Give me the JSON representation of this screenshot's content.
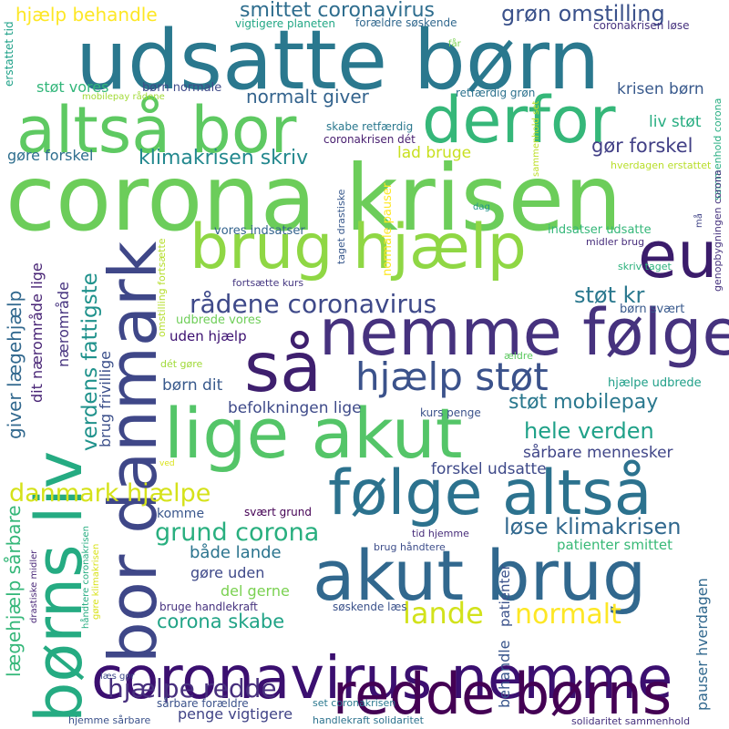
{
  "words": [
    {
      "text": "udsatte børn",
      "color": "#2a788e"
    },
    {
      "text": "corona krisen",
      "color": "#6ccd5a"
    },
    {
      "text": "altså bor",
      "color": "#5ec962"
    },
    {
      "text": "derfor",
      "color": "#35b779"
    },
    {
      "text": "brug hjælp",
      "color": "#8fd744"
    },
    {
      "text": "eu",
      "color": "#3b1c6b"
    },
    {
      "text": "nemme følge",
      "color": "#46327e"
    },
    {
      "text": "så",
      "color": "#3e1f6e"
    },
    {
      "text": "lige akut",
      "color": "#54c568"
    },
    {
      "text": "følge altså",
      "color": "#2c728e"
    },
    {
      "text": "akut brug",
      "color": "#31688e"
    },
    {
      "text": "coronavirus nemme",
      "color": "#3b0f70"
    },
    {
      "text": "redde børns",
      "color": "#440154"
    },
    {
      "text": "bor danmark",
      "color": "#3f4788"
    },
    {
      "text": "børns liv",
      "color": "#25ab82"
    },
    {
      "text": "smittet coronavirus",
      "color": "#2e6d8e"
    },
    {
      "text": "grøn omstilling",
      "color": "#3b528b"
    },
    {
      "text": "hjælp behandle",
      "color": "#fde725"
    },
    {
      "text": "vigtigere planeten",
      "color": "#22a785"
    },
    {
      "text": "forældre søskende",
      "color": "#31688e"
    },
    {
      "text": "får",
      "color": "#7ad151"
    },
    {
      "text": "coronakrisen løse",
      "color": "#46327e"
    },
    {
      "text": "erstattet tid",
      "color": "#1fa188"
    },
    {
      "text": "støt vores",
      "color": "#32b67a"
    },
    {
      "text": "børn normale",
      "color": "#3e4a89"
    },
    {
      "text": "mobilepay rådene",
      "color": "#a2da37"
    },
    {
      "text": "normalt giver",
      "color": "#33638d"
    },
    {
      "text": "retfærdig grøn",
      "color": "#2c728e"
    },
    {
      "text": "krisen børn",
      "color": "#38598c"
    },
    {
      "text": "liv støt",
      "color": "#27ad81"
    },
    {
      "text": "skabe retfærdig",
      "color": "#2a788e"
    },
    {
      "text": "coronakrisen dét",
      "color": "#481f70"
    },
    {
      "text": "sammenhold set",
      "color": "#bddf26"
    },
    {
      "text": "gør forskel",
      "color": "#424086"
    },
    {
      "text": "klimakrisen skriv",
      "color": "#23888e"
    },
    {
      "text": "lad bruge",
      "color": "#c8e020"
    },
    {
      "text": "gøre forskel",
      "color": "#2e6e8e"
    },
    {
      "text": "normale pauser",
      "color": "#fde725"
    },
    {
      "text": "taget drastiske",
      "color": "#38588c"
    },
    {
      "text": "hverdagen erstattet",
      "color": "#b8de29"
    },
    {
      "text": "sammenhold corona",
      "color": "#26ad81"
    },
    {
      "text": "genopbygningen corona",
      "color": "#46327e"
    },
    {
      "text": "dag",
      "color": "#1f958b"
    },
    {
      "text": "må",
      "color": "#414487"
    },
    {
      "text": "vores indsatser",
      "color": "#33638d"
    },
    {
      "text": "indsatser udsatte",
      "color": "#35b779"
    },
    {
      "text": "midler brug",
      "color": "#472d7b"
    },
    {
      "text": "omstilling fortsætte",
      "color": "#b5de2b"
    },
    {
      "text": "fortsætte kurs",
      "color": "#453781"
    },
    {
      "text": "skriv taget",
      "color": "#2db27d"
    },
    {
      "text": "rådene coronavirus",
      "color": "#3e4989"
    },
    {
      "text": "støt kr",
      "color": "#2a788e"
    },
    {
      "text": "børn svært",
      "color": "#38598c"
    },
    {
      "text": "giver lægehjælp",
      "color": "#31688e"
    },
    {
      "text": "dit nærområde lige",
      "color": "#482475"
    },
    {
      "text": "nærområde",
      "color": "#46337f"
    },
    {
      "text": "verdens fattigste",
      "color": "#20928c"
    },
    {
      "text": "brug frivillige",
      "color": "#3c508b"
    },
    {
      "text": "udbrede vores",
      "color": "#6ece58"
    },
    {
      "text": "uden hjælp",
      "color": "#3b0f70"
    },
    {
      "text": "hjælp støt",
      "color": "#3b528b"
    },
    {
      "text": "dét gøre",
      "color": "#a0da39"
    },
    {
      "text": "ældre",
      "color": "#5ec962"
    },
    {
      "text": "hjælpe udbrede",
      "color": "#1f9f88"
    },
    {
      "text": "børn dit",
      "color": "#38598c"
    },
    {
      "text": "befolkningen lige",
      "color": "#3e4a89"
    },
    {
      "text": "støt mobilepay",
      "color": "#2a788e"
    },
    {
      "text": "kurs penge",
      "color": "#3b528b"
    },
    {
      "text": "hele verden",
      "color": "#1fa188"
    },
    {
      "text": "sårbare mennesker",
      "color": "#404688"
    },
    {
      "text": "ved",
      "color": "#dae319"
    },
    {
      "text": "danmark hjælpe",
      "color": "#d5e21a"
    },
    {
      "text": "forskel udsatte",
      "color": "#3e4989"
    },
    {
      "text": "lægehjælp sårbare",
      "color": "#35b779"
    },
    {
      "text": "komme",
      "color": "#39568c"
    },
    {
      "text": "svært grund",
      "color": "#440154"
    },
    {
      "text": "grund corona",
      "color": "#29af7f"
    },
    {
      "text": "løse klimakrisen",
      "color": "#31688e"
    },
    {
      "text": "tid hjemme",
      "color": "#472c7a"
    },
    {
      "text": "patienter smittet",
      "color": "#38b977"
    },
    {
      "text": "både lande",
      "color": "#2b748e"
    },
    {
      "text": "brug håndtere",
      "color": "#3d4d8a"
    },
    {
      "text": "drastiske midler",
      "color": "#482677"
    },
    {
      "text": "gøre uden",
      "color": "#3e4989"
    },
    {
      "text": "del gerne",
      "color": "#7ad151"
    },
    {
      "text": "lande",
      "color": "#d2e21b"
    },
    {
      "text": "normalt",
      "color": "#fde725"
    },
    {
      "text": "håndtere coronakrisen",
      "color": "#27ad81"
    },
    {
      "text": "gøre klimakrisen",
      "color": "#d8e219"
    },
    {
      "text": "corona skabe",
      "color": "#20a386"
    },
    {
      "text": "bruge handlekraft",
      "color": "#46327e"
    },
    {
      "text": "søskende læs",
      "color": "#3b528b"
    },
    {
      "text": "patienter",
      "color": "#3b528b"
    },
    {
      "text": "behandle",
      "color": "#39568c"
    },
    {
      "text": "pauser hverdagen",
      "color": "#31688e"
    },
    {
      "text": "læs gør",
      "color": "#3e4989"
    },
    {
      "text": "hjælpe redde",
      "color": "#472f7d"
    },
    {
      "text": "sårbare forældre",
      "color": "#3b528b"
    },
    {
      "text": "set coronakrisen",
      "color": "#2a788e"
    },
    {
      "text": "penge vigtigere",
      "color": "#414487"
    },
    {
      "text": "hjemme sårbare",
      "color": "#3b528b"
    },
    {
      "text": "handlekraft solidaritet",
      "color": "#2c728e"
    },
    {
      "text": "solidaritet sammenhold",
      "color": "#46327e"
    }
  ]
}
